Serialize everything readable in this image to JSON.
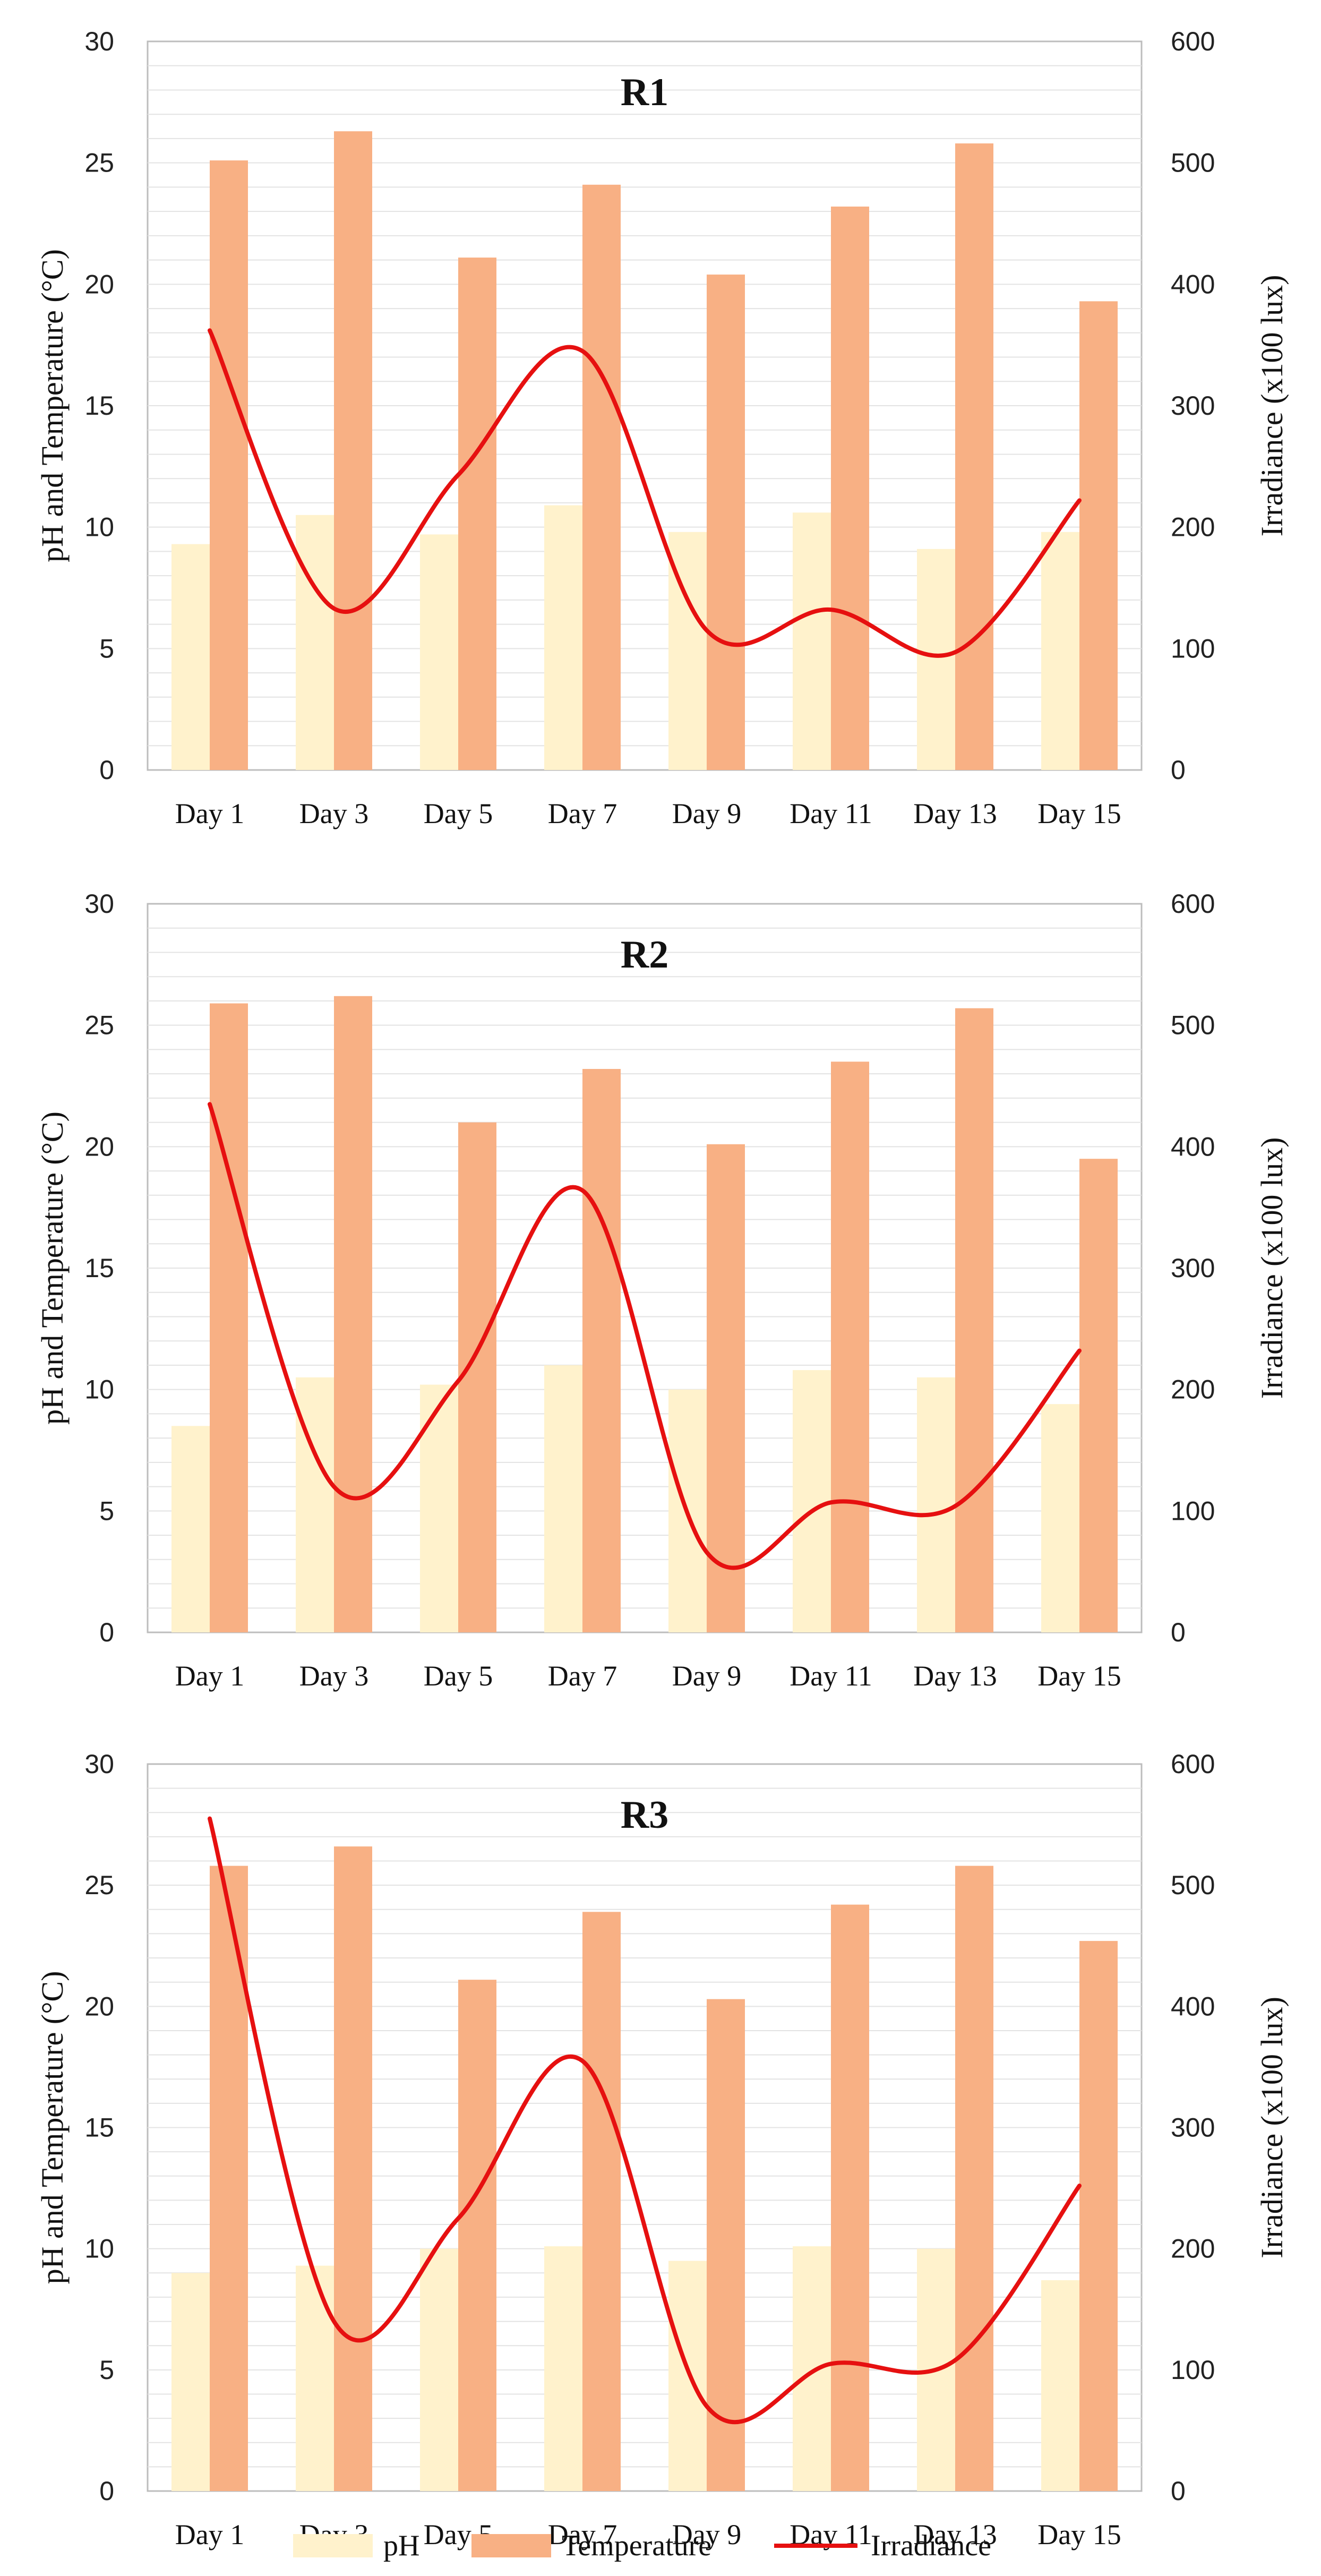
{
  "colors": {
    "ph": "#fff2cc",
    "temperature": "#f8b084",
    "irradiance": "#e61010",
    "grid": "#e3e3e3",
    "axis": "#bdbdbd"
  },
  "legend": {
    "ph": "pH",
    "temperature": "Temperature",
    "irradiance": "Irradiance"
  },
  "chart_data": [
    {
      "type": "bar",
      "title": "R1",
      "categories": [
        "Day 1",
        "Day 3",
        "Day 5",
        "Day 7",
        "Day 9",
        "Day 11",
        "Day 13",
        "Day 15"
      ],
      "ylabel": "pH and Temperature (°C)",
      "y2label": "Irradiance (x100 lux)",
      "ylim": [
        0,
        30
      ],
      "yticks": [
        "0",
        "5",
        "10",
        "15",
        "20",
        "25",
        "30"
      ],
      "y2lim": [
        0,
        600
      ],
      "y2ticks": [
        "0",
        "100",
        "200",
        "300",
        "400",
        "500",
        "600"
      ],
      "series": [
        {
          "name": "pH",
          "type": "bar",
          "axis": "left",
          "values": [
            9.3,
            10.5,
            9.7,
            10.9,
            9.8,
            10.6,
            9.1,
            9.8
          ]
        },
        {
          "name": "Temperature",
          "type": "bar",
          "axis": "left",
          "values": [
            25.1,
            26.3,
            21.1,
            24.1,
            20.4,
            23.2,
            25.8,
            19.3
          ]
        },
        {
          "name": "Irradiance",
          "type": "line",
          "axis": "right",
          "smooth": true,
          "values": [
            362,
            133,
            243,
            345,
            115,
            132,
            97,
            222
          ]
        }
      ]
    },
    {
      "type": "bar",
      "title": "R2",
      "categories": [
        "Day 1",
        "Day 3",
        "Day 5",
        "Day 7",
        "Day 9",
        "Day 11",
        "Day 13",
        "Day 15"
      ],
      "ylabel": "pH and Temperature (°C)",
      "y2label": "Irradiance (x100 lux)",
      "ylim": [
        0,
        30
      ],
      "yticks": [
        "0",
        "5",
        "10",
        "15",
        "20",
        "25",
        "30"
      ],
      "y2lim": [
        0,
        600
      ],
      "y2ticks": [
        "0",
        "100",
        "200",
        "300",
        "400",
        "500",
        "600"
      ],
      "series": [
        {
          "name": "pH",
          "type": "bar",
          "axis": "left",
          "values": [
            8.5,
            10.5,
            10.2,
            11.0,
            10.0,
            10.8,
            10.5,
            9.4
          ]
        },
        {
          "name": "Temperature",
          "type": "bar",
          "axis": "left",
          "values": [
            25.9,
            26.2,
            21.0,
            23.2,
            20.1,
            23.5,
            25.7,
            19.5
          ]
        },
        {
          "name": "Irradiance",
          "type": "line",
          "axis": "right",
          "smooth": true,
          "values": [
            435,
            120,
            207,
            364,
            66,
            107,
            104,
            232
          ]
        }
      ]
    },
    {
      "type": "bar",
      "title": "R3",
      "categories": [
        "Day 1",
        "Day 3",
        "Day 5",
        "Day 7",
        "Day 9",
        "Day 11",
        "Day 13",
        "Day 15"
      ],
      "ylabel": "pH and Temperature (°C)",
      "y2label": "Irradiance (x100 lux)",
      "ylim": [
        0,
        30
      ],
      "yticks": [
        "0",
        "5",
        "10",
        "15",
        "20",
        "25",
        "30"
      ],
      "y2lim": [
        0,
        600
      ],
      "y2ticks": [
        "0",
        "100",
        "200",
        "300",
        "400",
        "500",
        "600"
      ],
      "series": [
        {
          "name": "pH",
          "type": "bar",
          "axis": "left",
          "values": [
            9.0,
            9.3,
            10.0,
            10.1,
            9.5,
            10.1,
            10.0,
            8.7
          ]
        },
        {
          "name": "Temperature",
          "type": "bar",
          "axis": "left",
          "values": [
            25.8,
            26.6,
            21.1,
            23.9,
            20.3,
            24.2,
            25.8,
            22.7
          ]
        },
        {
          "name": "Irradiance",
          "type": "line",
          "axis": "right",
          "smooth": true,
          "values": [
            555,
            140,
            225,
            355,
            70,
            105,
            108,
            252
          ]
        }
      ]
    }
  ]
}
